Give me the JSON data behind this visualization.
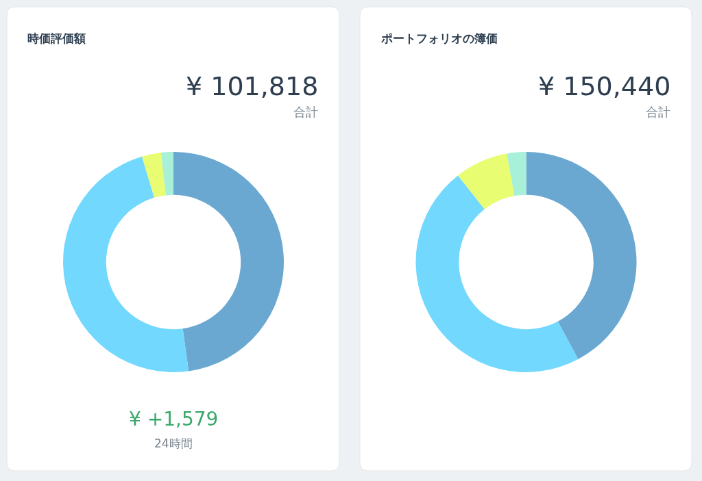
{
  "chart_data": [
    {
      "type": "donut",
      "title": "時価評価額",
      "categories": [
        null,
        null,
        null,
        null
      ],
      "values": [
        47.8,
        47.6,
        2.8,
        1.8
      ],
      "colors": [
        "#6aa8d2",
        "#72d8fe",
        "#e8fd72",
        "#a8f0d8"
      ],
      "annotations": [
        "¥ 101,818",
        "合計",
        "¥ +1,579",
        "24時間"
      ]
    },
    {
      "type": "donut",
      "title": "ポートフォリオの簿価",
      "categories": [
        null,
        null,
        null,
        null
      ],
      "values": [
        42.2,
        47.2,
        7.8,
        2.8
      ],
      "colors": [
        "#6aa8d2",
        "#72d8fe",
        "#e8fd72",
        "#a8f0d8"
      ],
      "annotations": [
        "¥ 150,440",
        "合計"
      ]
    }
  ]
}
